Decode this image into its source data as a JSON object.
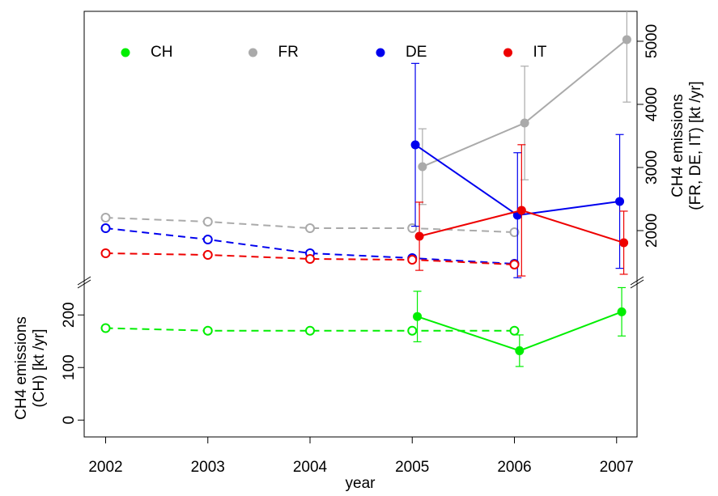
{
  "chart_data": {
    "type": "line",
    "xlabel": "year",
    "ylabel": [
      "CH4 emissions",
      "(CH) [kt /yr]"
    ],
    "y2label": [
      "CH4 emissions",
      "(FR, DE, IT) [kt /yr]"
    ],
    "xlim": [
      2001.79,
      2007.2
    ],
    "xticks": [
      2002,
      2003,
      2004,
      2005,
      2006,
      2007
    ],
    "ylim": [
      -32,
      265
    ],
    "yticks": [
      0,
      100,
      200
    ],
    "y2lim": [
      1205,
      5474
    ],
    "y2ticks": [
      2000,
      3000,
      4000,
      5000
    ],
    "legend": "top",
    "series": [
      {
        "name": "CH",
        "color": "#00ee00",
        "axis": "y",
        "inventory_x": [
          2002,
          2003,
          2004,
          2005,
          2006
        ],
        "inventory": [
          175,
          170,
          170,
          170,
          170
        ],
        "x": [
          2005.05,
          2006.05,
          2007.05
        ],
        "values": [
          197,
          132,
          206
        ],
        "errors": [
          48,
          30,
          46
        ]
      },
      {
        "name": "FR",
        "color": "#aaaaaa",
        "axis": "y2",
        "inventory_x": [
          2002,
          2003,
          2004,
          2005,
          2006
        ],
        "inventory": [
          2205,
          2141,
          2038,
          2038,
          1974
        ],
        "x": [
          2005.1,
          2006.1,
          2007.1
        ],
        "values": [
          3013,
          3705,
          5026
        ],
        "errors": [
          600,
          900,
          990
        ]
      },
      {
        "name": "DE",
        "color": "#0000ee",
        "axis": "y2",
        "inventory_x": [
          2002,
          2003,
          2004,
          2005,
          2006
        ],
        "inventory": [
          2038,
          1859,
          1641,
          1564,
          1474
        ],
        "x": [
          2005.03,
          2006.03,
          2007.03
        ],
        "values": [
          3359,
          2244,
          2462
        ],
        "errors": [
          1290,
          990,
          1060
        ]
      },
      {
        "name": "IT",
        "color": "#ee0000",
        "axis": "y2",
        "inventory_x": [
          2002,
          2003,
          2004,
          2005,
          2006
        ],
        "inventory": [
          1641,
          1615,
          1551,
          1538,
          1462
        ],
        "x": [
          2005.07,
          2006.07,
          2007.07
        ],
        "values": [
          1910,
          2321,
          1808
        ],
        "errors": [
          540,
          1040,
          500
        ]
      }
    ]
  }
}
